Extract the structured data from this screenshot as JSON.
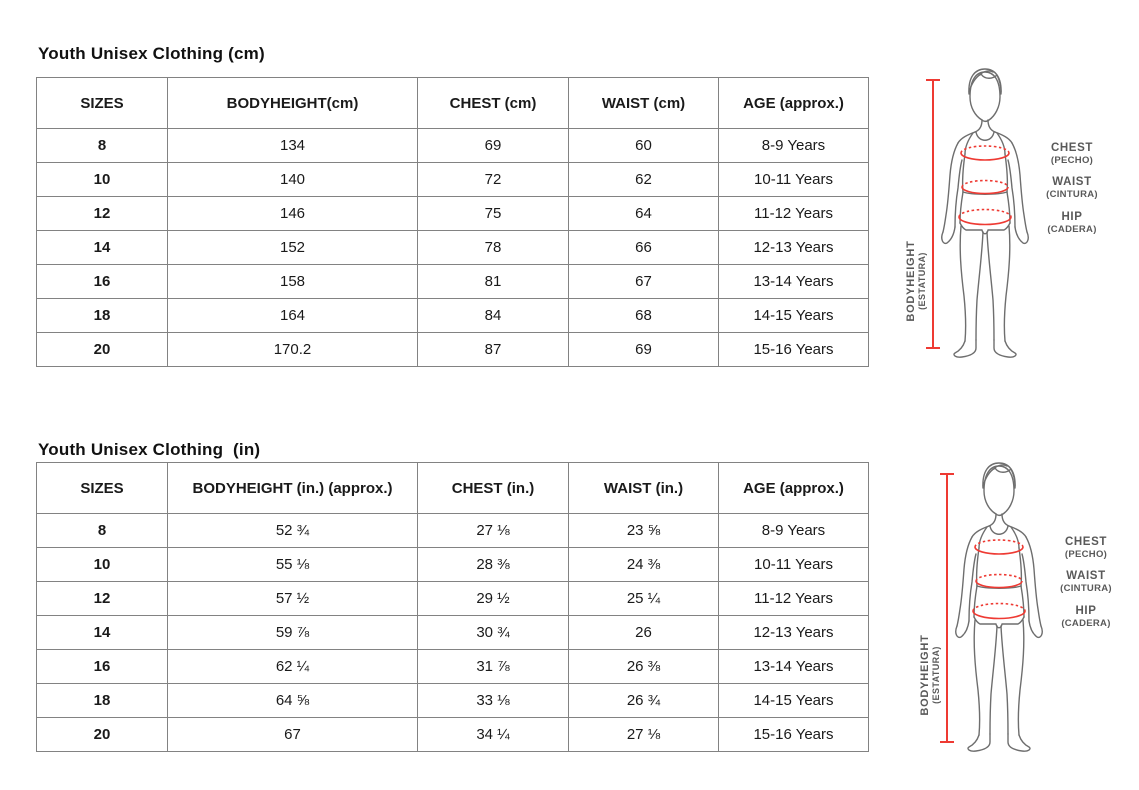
{
  "sections": [
    {
      "title": "Youth Unisex Clothing (cm)",
      "table": {
        "headers": [
          "SIZES",
          "BODYHEIGHT(cm)",
          "CHEST (cm)",
          "WAIST (cm)",
          "AGE (approx.)"
        ],
        "rows": [
          [
            "8",
            "134",
            "69",
            "60",
            "8-9 Years"
          ],
          [
            "10",
            "140",
            "72",
            "62",
            "10-11 Years"
          ],
          [
            "12",
            "146",
            "75",
            "64",
            "11-12 Years"
          ],
          [
            "14",
            "152",
            "78",
            "66",
            "12-13 Years"
          ],
          [
            "16",
            "158",
            "81",
            "67",
            "13-14 Years"
          ],
          [
            "18",
            "164",
            "84",
            "68",
            "14-15 Years"
          ],
          [
            "20",
            "170.2",
            "87",
            "69",
            "15-16 Years"
          ]
        ]
      }
    },
    {
      "title": "Youth Unisex Clothing  (in)",
      "table": {
        "headers": [
          "SIZES",
          "BODYHEIGHT (in.) (approx.)",
          "CHEST (in.)",
          "WAIST (in.)",
          "AGE (approx.)"
        ],
        "rows": [
          [
            "8",
            "52 ¾",
            "27 ⅛",
            "23 ⅝",
            "8-9 Years"
          ],
          [
            "10",
            "55 ⅛",
            "28 ⅜",
            "24 ⅜",
            "10-11 Years"
          ],
          [
            "12",
            "57 ½",
            "29 ½",
            "25 ¼",
            "11-12 Years"
          ],
          [
            "14",
            "59 ⅞",
            "30 ¾",
            "26",
            "12-13 Years"
          ],
          [
            "16",
            "62 ¼",
            "31 ⅞",
            "26 ⅜",
            "13-14 Years"
          ],
          [
            "18",
            "64 ⅝",
            "33 ⅛",
            "26 ¾",
            "14-15 Years"
          ],
          [
            "20",
            "67",
            "34 ¼",
            "27 ⅛",
            "15-16 Years"
          ]
        ]
      }
    }
  ],
  "diagram": {
    "bodyheight_label": "BODYHEIGHT",
    "bodyheight_sublabel": "(ESTATURA)",
    "labels": [
      {
        "main": "CHEST",
        "sub": "(PECHO)"
      },
      {
        "main": "WAIST",
        "sub": "(CINTURA)"
      },
      {
        "main": "HIP",
        "sub": "(CADERA)"
      }
    ],
    "accent_color": "#ee3a33",
    "outline_color": "#6e6e6e",
    "label_color": "#595959",
    "table_border_color": "#828282"
  }
}
